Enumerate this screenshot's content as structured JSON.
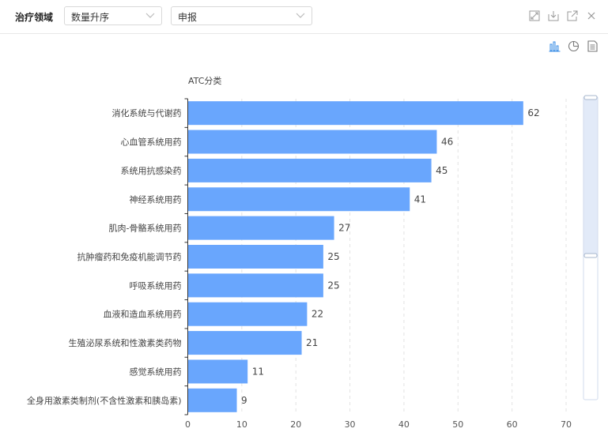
{
  "toolbar": {
    "title": "治疗领域",
    "sort_select": "数量升序",
    "metric_select": "申报"
  },
  "icons": {
    "expand": "expand-icon",
    "download": "download-icon",
    "open_new": "open-external-icon",
    "close": "close-icon",
    "bar_view": "bar-chart-icon",
    "pie_view": "pie-chart-icon",
    "data_view": "document-icon"
  },
  "colors": {
    "bar": "#69a6fd",
    "active_icon": "#3a8ee6",
    "icon": "#999999"
  },
  "chart_data": {
    "type": "bar",
    "orientation": "horizontal",
    "axis_title": "ATC分类",
    "categories": [
      "消化系统与代谢药",
      "心血管系统用药",
      "系统用抗感染药",
      "神经系统用药",
      "肌肉-骨骼系统用药",
      "抗肿瘤药和免疫机能调节药",
      "呼吸系统用药",
      "血液和造血系统用药",
      "生殖泌尿系统和性激素类药物",
      "感觉系统用药",
      "全身用激素类制剂(不含性激素和胰岛素)"
    ],
    "values": [
      62,
      46,
      45,
      41,
      27,
      25,
      25,
      22,
      21,
      11,
      9
    ],
    "xlim": [
      0,
      70
    ],
    "xticks": [
      "0",
      "10",
      "20",
      "30",
      "40",
      "50",
      "60",
      "70"
    ],
    "grid": "vertical dashed",
    "datazoom": "vertical slider on right"
  }
}
